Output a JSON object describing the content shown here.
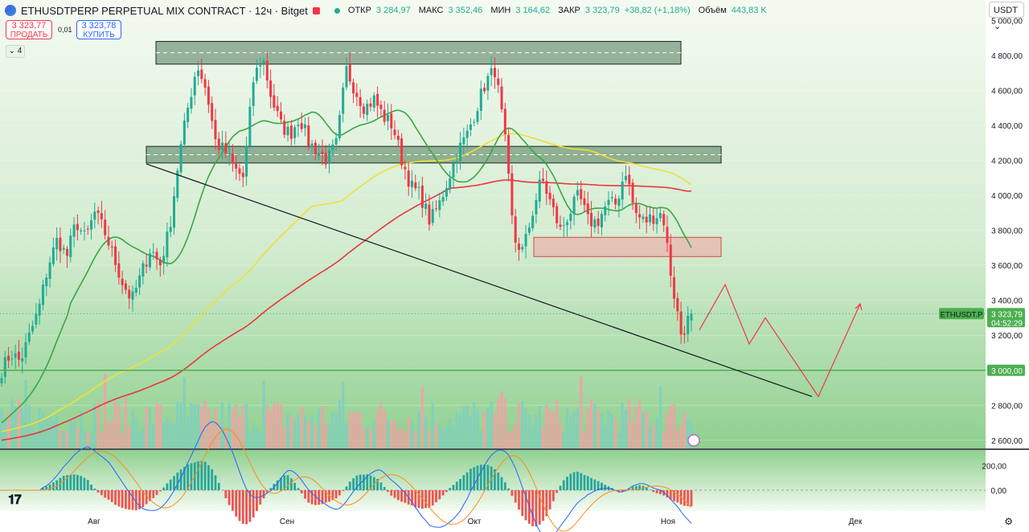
{
  "header": {
    "symbol_title": "ETHUSDTPERP PERPETUAL MIX CONTRACT · 12ч · Bitget",
    "open_label": "ОТКР",
    "open_value": "3 284,97",
    "high_label": "МАКС",
    "high_value": "3 352,46",
    "low_label": "МИН",
    "low_value": "3 164,62",
    "close_label": "ЗАКР",
    "close_value": "3 323,79",
    "change_value": "+38,82 (+1,18%)",
    "volume_label": "Объём",
    "volume_value": "443,83 K"
  },
  "trade": {
    "sell_price": "3 323,77",
    "sell_label": "ПРОДАТЬ",
    "spread": "0,01",
    "buy_price": "3 323,78",
    "buy_label": "КУПИТЬ"
  },
  "indicators_toggle": "4",
  "currency": "USDT",
  "colors": {
    "up": "#22ab94",
    "down": "#f23645",
    "bg_top": "#e3f2df",
    "bg_bottom": "#74c77a",
    "ma_green": "#3aa744",
    "ma_yellow": "#efe03a",
    "ma_red": "#e8373f"
  },
  "icons": [
    "tradingview-logo-icon",
    "settings-icon",
    "lightning-icon",
    "bitget-logo-icon"
  ],
  "chart_data": {
    "type": "candlestick",
    "interval": "12h",
    "y_axis": {
      "ticks": [
        2600,
        2800,
        3000,
        3200,
        3400,
        3600,
        3800,
        4000,
        4200,
        4400,
        4600,
        4800,
        5000
      ],
      "tick_labels": [
        "2 600,00",
        "2 800,00",
        "3 000,00",
        "3 200,00",
        "3 400,00",
        "3 600,00",
        "3 800,00",
        "4 000,00",
        "4 200,00",
        "4 400,00",
        "4 600,00",
        "4 800,00",
        "5 000,00"
      ],
      "ylim": [
        2590,
        5080
      ]
    },
    "x_axis": {
      "labels": [
        "Авг",
        "Сен",
        "Окт",
        "Ноя",
        "Дек"
      ]
    },
    "last_price": {
      "symbol": "ETHUSDT.P",
      "price": "3 323,79",
      "countdown": "04:52:29",
      "value": 3323.79
    },
    "level_line": {
      "value": 3000,
      "label": "3 000,00"
    },
    "zones": [
      {
        "name": "top-resistance",
        "top": 4880,
        "bottom": 4750
      },
      {
        "name": "mid-range",
        "top": 4280,
        "bottom": 4185
      },
      {
        "name": "support-zone",
        "top": 3760,
        "bottom": 3650
      }
    ],
    "trendline": {
      "from_price": 4180,
      "to_price": 2850
    },
    "projection_path": [
      3230,
      3490,
      3150,
      3300,
      2850,
      3380
    ],
    "oscillator": {
      "tick_labels": [
        "200,00",
        "0,00"
      ],
      "ticks": [
        200,
        0
      ],
      "ylim": [
        -170,
        300
      ]
    },
    "anchors": [
      3000,
      3100,
      3050,
      3200,
      3350,
      3600,
      3750,
      3650,
      3850,
      3750,
      3900,
      3800,
      3650,
      3500,
      3400,
      3550,
      3700,
      3600,
      3800,
      4200,
      4500,
      4750,
      4600,
      4300,
      4250,
      4150,
      4100,
      4650,
      4800,
      4550,
      4400,
      4350,
      4450,
      4300,
      4250,
      4200,
      4300,
      4720,
      4600,
      4500,
      4550,
      4450,
      4400,
      4200,
      4050,
      4000,
      3850,
      3950,
      4100,
      4250,
      4350,
      4500,
      4650,
      4720,
      4350,
      3750,
      3680,
      3900,
      4100,
      3950,
      3800,
      3900,
      4000,
      3850,
      3850,
      3950,
      3950,
      4150,
      3900,
      3850,
      3880,
      3900,
      3500,
      3200,
      3323.79
    ],
    "volume_note": "volume histogram at bottom of price pane"
  }
}
